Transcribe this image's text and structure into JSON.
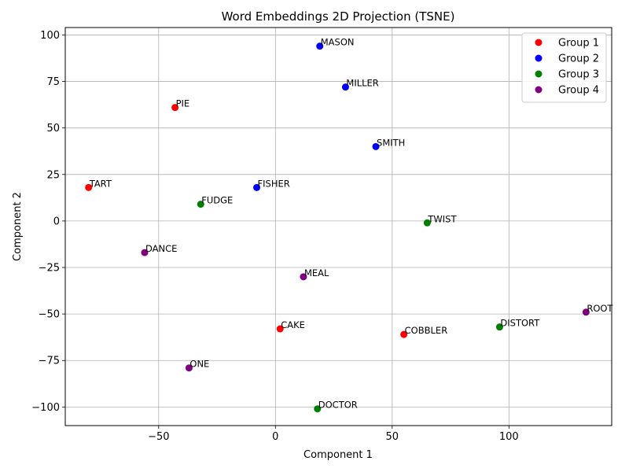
{
  "chart_data": {
    "type": "scatter",
    "title": "Word Embeddings 2D Projection (TSNE)",
    "xlabel": "Component 1",
    "ylabel": "Component 2",
    "xlim": [
      -90,
      144
    ],
    "ylim": [
      -110,
      104
    ],
    "xticks": [
      -50,
      0,
      50,
      100
    ],
    "yticks": [
      -100,
      -75,
      -50,
      -25,
      0,
      25,
      50,
      75,
      100
    ],
    "xtick_labels": [
      "−50",
      "0",
      "50",
      "100"
    ],
    "ytick_labels": [
      "−100",
      "−75",
      "−50",
      "−25",
      "0",
      "25",
      "50",
      "75",
      "100"
    ],
    "grid": true,
    "legend_position": "top-right",
    "series": [
      {
        "name": "Group 1",
        "color": "#ff0000",
        "points": [
          {
            "label": "PIE",
            "x": -43,
            "y": 61
          },
          {
            "label": "TART",
            "x": -80,
            "y": 18
          },
          {
            "label": "CAKE",
            "x": 2,
            "y": -58
          },
          {
            "label": "COBBLER",
            "x": 55,
            "y": -61
          }
        ]
      },
      {
        "name": "Group 2",
        "color": "#0000ff",
        "points": [
          {
            "label": "MASON",
            "x": 19,
            "y": 94
          },
          {
            "label": "MILLER",
            "x": 30,
            "y": 72
          },
          {
            "label": "SMITH",
            "x": 43,
            "y": 40
          },
          {
            "label": "FISHER",
            "x": -8,
            "y": 18
          }
        ]
      },
      {
        "name": "Group 3",
        "color": "#008000",
        "points": [
          {
            "label": "FUDGE",
            "x": -32,
            "y": 9
          },
          {
            "label": "TWIST",
            "x": 65,
            "y": -1
          },
          {
            "label": "DISTORT",
            "x": 96,
            "y": -57
          },
          {
            "label": "DOCTOR",
            "x": 18,
            "y": -101
          }
        ]
      },
      {
        "name": "Group 4",
        "color": "#800080",
        "points": [
          {
            "label": "DANCE",
            "x": -56,
            "y": -17
          },
          {
            "label": "MEAL",
            "x": 12,
            "y": -30
          },
          {
            "label": "ROOT",
            "x": 133,
            "y": -49
          },
          {
            "label": "ONE",
            "x": -37,
            "y": -79
          }
        ]
      }
    ]
  }
}
